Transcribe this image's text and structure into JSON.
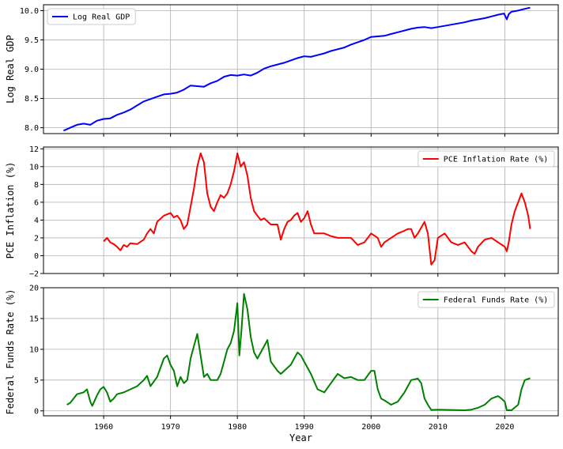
{
  "chart_data": [
    {
      "type": "line",
      "ylabel": "Log Real GDP",
      "xlabel": "",
      "xlim": [
        1951,
        2028
      ],
      "ylim": [
        7.9,
        10.1
      ],
      "yticks": [
        8.0,
        8.5,
        9.0,
        9.5,
        10.0
      ],
      "ytick_labels": [
        "8.0",
        "8.5",
        "9.0",
        "9.5",
        "10.0"
      ],
      "xticks": [
        1960,
        1970,
        1980,
        1990,
        2000,
        2010,
        2020
      ],
      "xtick_labels": [
        "",
        "",
        "",
        "",
        "",
        "",
        ""
      ],
      "grid": true,
      "legend_position": "upper-left",
      "series": [
        {
          "name": "Log Real GDP",
          "color": "#0000ff",
          "x": [
            1954,
            1955,
            1956,
            1957,
            1958,
            1959,
            1960,
            1961,
            1962,
            1963,
            1964,
            1965,
            1966,
            1967,
            1968,
            1969,
            1970,
            1971,
            1972,
            1973,
            1974,
            1975,
            1976,
            1977,
            1978,
            1979,
            1980,
            1981,
            1982,
            1983,
            1984,
            1985,
            1986,
            1987,
            1988,
            1989,
            1990,
            1991,
            1992,
            1993,
            1994,
            1995,
            1996,
            1997,
            1998,
            1999,
            2000,
            2001,
            2002,
            2003,
            2004,
            2005,
            2006,
            2007,
            2008,
            2009,
            2010,
            2011,
            2012,
            2013,
            2014,
            2015,
            2016,
            2017,
            2018,
            2019,
            2019.9,
            2020.3,
            2020.6,
            2021,
            2022,
            2023,
            2023.8
          ],
          "y": [
            7.95,
            8.0,
            8.05,
            8.07,
            8.05,
            8.12,
            8.15,
            8.16,
            8.22,
            8.26,
            8.31,
            8.38,
            8.45,
            8.49,
            8.53,
            8.57,
            8.58,
            8.6,
            8.65,
            8.72,
            8.71,
            8.7,
            8.76,
            8.8,
            8.87,
            8.9,
            8.89,
            8.91,
            8.89,
            8.94,
            9.01,
            9.05,
            9.08,
            9.11,
            9.15,
            9.19,
            9.22,
            9.21,
            9.24,
            9.27,
            9.31,
            9.34,
            9.37,
            9.42,
            9.46,
            9.5,
            9.55,
            9.56,
            9.57,
            9.6,
            9.63,
            9.66,
            9.69,
            9.71,
            9.72,
            9.7,
            9.72,
            9.74,
            9.76,
            9.78,
            9.8,
            9.83,
            9.85,
            9.87,
            9.9,
            9.93,
            9.95,
            9.85,
            9.94,
            9.98,
            10.0,
            10.03,
            10.05
          ]
        }
      ]
    },
    {
      "type": "line",
      "ylabel": "PCE Inflation (%)",
      "xlabel": "",
      "xlim": [
        1951,
        2028
      ],
      "ylim": [
        -2,
        12.2
      ],
      "yticks": [
        -2,
        0,
        2,
        4,
        6,
        8,
        10,
        12
      ],
      "ytick_labels": [
        "−2",
        "0",
        "2",
        "4",
        "6",
        "8",
        "10",
        "12"
      ],
      "xticks": [
        1960,
        1970,
        1980,
        1990,
        2000,
        2010,
        2020
      ],
      "xtick_labels": [
        "",
        "",
        "",
        "",
        "",
        "",
        ""
      ],
      "grid": true,
      "legend_position": "upper-right",
      "series": [
        {
          "name": "PCE Inflation Rate (%)",
          "color": "#ff0000",
          "x": [
            1960,
            1960.5,
            1961,
            1961.5,
            1962,
            1962.5,
            1963,
            1963.5,
            1964,
            1965,
            1966,
            1966.5,
            1967,
            1967.5,
            1968,
            1969,
            1970,
            1970.5,
            1971,
            1971.5,
            1972,
            1972.5,
            1973,
            1973.5,
            1974,
            1974.5,
            1975,
            1975.5,
            1976,
            1976.5,
            1977,
            1977.5,
            1978,
            1978.5,
            1979,
            1979.5,
            1980,
            1980.5,
            1981,
            1981.5,
            1982,
            1982.5,
            1983,
            1983.5,
            1984,
            1985,
            1986,
            1986.5,
            1987,
            1987.5,
            1988,
            1988.5,
            1989,
            1989.5,
            1990,
            1990.5,
            1991,
            1991.5,
            1992,
            1993,
            1994,
            1995,
            1996,
            1997,
            1998,
            1999,
            2000,
            2001,
            2001.5,
            2002,
            2003,
            2004,
            2005,
            2005.5,
            2006,
            2006.5,
            2007,
            2008,
            2008.5,
            2009,
            2009.5,
            2010,
            2011,
            2011.5,
            2012,
            2013,
            2014,
            2015,
            2015.5,
            2016,
            2017,
            2018,
            2019,
            2020,
            2020.3,
            2020.6,
            2021,
            2021.5,
            2022,
            2022.5,
            2023,
            2023.5,
            2023.8
          ],
          "y": [
            1.6,
            2.0,
            1.5,
            1.3,
            1.0,
            0.6,
            1.2,
            1.0,
            1.4,
            1.3,
            1.8,
            2.5,
            3.0,
            2.5,
            3.8,
            4.5,
            4.8,
            4.3,
            4.5,
            4.0,
            3.0,
            3.5,
            5.5,
            7.5,
            10.0,
            11.5,
            10.5,
            7.0,
            5.5,
            5.0,
            6.0,
            6.8,
            6.5,
            7.0,
            8.0,
            9.5,
            11.5,
            10.0,
            10.5,
            9.0,
            6.5,
            5.0,
            4.5,
            4.0,
            4.2,
            3.5,
            3.5,
            1.8,
            3.0,
            3.8,
            4.0,
            4.5,
            4.8,
            3.8,
            4.2,
            5.0,
            3.5,
            2.5,
            2.5,
            2.5,
            2.2,
            2.0,
            2.0,
            2.0,
            1.2,
            1.5,
            2.5,
            2.0,
            1.0,
            1.5,
            2.0,
            2.5,
            2.8,
            3.0,
            3.0,
            2.0,
            2.5,
            3.8,
            2.5,
            -1.0,
            -0.5,
            2.0,
            2.5,
            2.0,
            1.5,
            1.2,
            1.5,
            0.5,
            0.2,
            1.0,
            1.8,
            2.0,
            1.5,
            1.0,
            0.5,
            1.5,
            3.5,
            5.0,
            6.0,
            7.0,
            6.0,
            4.5,
            3.0
          ]
        }
      ]
    },
    {
      "type": "line",
      "ylabel": "Federal Funds Rate (%)",
      "xlabel": "Year",
      "xlim": [
        1951,
        2028
      ],
      "ylim": [
        -0.8,
        20
      ],
      "yticks": [
        0,
        5,
        10,
        15,
        20
      ],
      "ytick_labels": [
        "0",
        "5",
        "10",
        "15",
        "20"
      ],
      "xticks": [
        1960,
        1970,
        1980,
        1990,
        2000,
        2010,
        2020
      ],
      "xtick_labels": [
        "1960",
        "1970",
        "1980",
        "1990",
        "2000",
        "2010",
        "2020"
      ],
      "grid": true,
      "legend_position": "upper-right",
      "series": [
        {
          "name": "Federal Funds Rate (%)",
          "color": "#008000",
          "x": [
            1954.5,
            1955,
            1955.5,
            1956,
            1957,
            1957.5,
            1958,
            1958.3,
            1959,
            1959.5,
            1960,
            1960.5,
            1961,
            1961.5,
            1962,
            1963,
            1964,
            1965,
            1966,
            1966.5,
            1967,
            1968,
            1969,
            1969.5,
            1970,
            1970.5,
            1971,
            1971.5,
            1972,
            1972.5,
            1973,
            1973.5,
            1974,
            1974.5,
            1975,
            1975.5,
            1976,
            1977,
            1977.5,
            1978,
            1978.5,
            1979,
            1979.5,
            1980,
            1980.3,
            1980.6,
            1981,
            1981.5,
            1982,
            1982.5,
            1983,
            1984,
            1984.5,
            1985,
            1986,
            1986.5,
            1987,
            1988,
            1989,
            1989.5,
            1990,
            1991,
            1992,
            1993,
            1994,
            1995,
            1996,
            1997,
            1998,
            1999,
            2000,
            2000.5,
            2001,
            2001.5,
            2002,
            2003,
            2004,
            2005,
            2006,
            2007,
            2007.5,
            2008,
            2008.5,
            2009,
            2010,
            2012,
            2014,
            2015,
            2016,
            2017,
            2018,
            2019,
            2019.5,
            2020,
            2020.3,
            2021,
            2022,
            2022.5,
            2023,
            2023.8
          ],
          "y": [
            1.0,
            1.3,
            2.0,
            2.7,
            3.0,
            3.5,
            1.5,
            0.8,
            2.5,
            3.5,
            3.9,
            3.0,
            1.5,
            2.0,
            2.7,
            3.0,
            3.5,
            4.0,
            5.0,
            5.7,
            4.0,
            5.5,
            8.5,
            9.0,
            7.5,
            6.5,
            4.0,
            5.5,
            4.5,
            5.0,
            8.5,
            10.5,
            12.5,
            9.0,
            5.5,
            6.0,
            5.0,
            5.0,
            6.0,
            8.0,
            10.0,
            11.0,
            13.0,
            17.5,
            9.0,
            13.0,
            19.0,
            16.5,
            12.0,
            9.5,
            8.5,
            10.5,
            11.5,
            8.0,
            6.5,
            6.0,
            6.5,
            7.5,
            9.5,
            9.0,
            8.0,
            6.0,
            3.5,
            3.0,
            4.5,
            6.0,
            5.3,
            5.5,
            5.0,
            5.0,
            6.5,
            6.5,
            3.5,
            2.0,
            1.7,
            1.0,
            1.5,
            3.0,
            5.0,
            5.25,
            4.5,
            2.0,
            1.0,
            0.15,
            0.2,
            0.15,
            0.1,
            0.2,
            0.5,
            1.0,
            2.0,
            2.4,
            2.0,
            1.5,
            0.1,
            0.1,
            1.0,
            3.5,
            5.0,
            5.3
          ]
        }
      ]
    }
  ]
}
